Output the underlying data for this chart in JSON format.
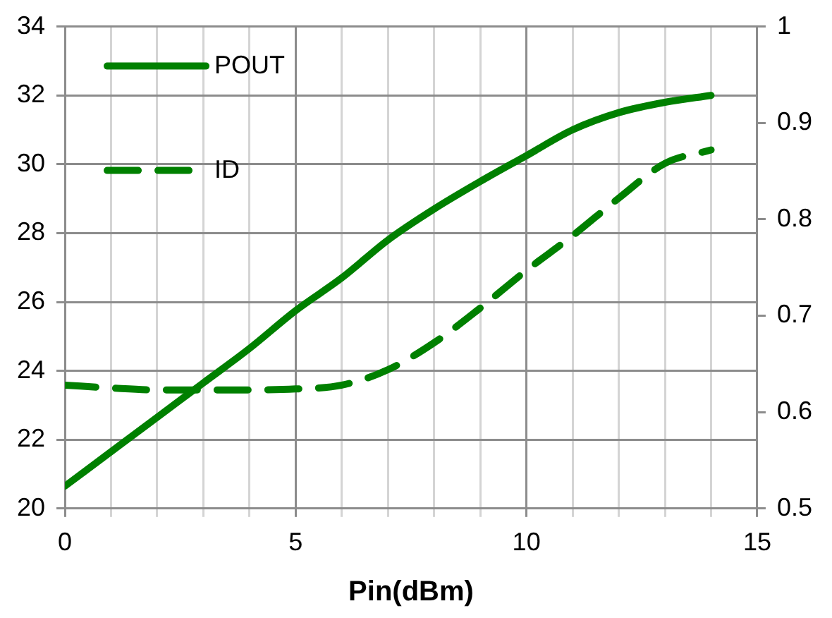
{
  "chart_data": {
    "type": "line",
    "xlabel": "Pin(dBm)",
    "x": [
      0,
      1,
      2,
      3,
      4,
      5,
      6,
      7,
      8,
      9,
      10,
      11,
      12,
      13,
      14
    ],
    "series": [
      {
        "name": "POUT",
        "color": "#008000",
        "line_style": "solid",
        "values": [
          20.65,
          21.65,
          22.65,
          23.65,
          24.65,
          25.75,
          26.7,
          27.8,
          28.7,
          29.5,
          30.25,
          31.0,
          31.5,
          31.8,
          32.0
        ]
      },
      {
        "name": "ID",
        "color": "#008000",
        "line_style": "dashed",
        "axis": "y2",
        "values": [
          0.628,
          0.625,
          0.623,
          0.623,
          0.623,
          0.624,
          0.628,
          0.644,
          0.672,
          0.708,
          0.747,
          0.783,
          0.822,
          0.858,
          0.872
        ]
      }
    ],
    "xlim": [
      0,
      15
    ],
    "xticks": [
      0,
      {
        "value": 1,
        "label": null
      },
      {
        "value": 2,
        "label": null
      },
      {
        "value": 3,
        "label": null
      },
      {
        "value": 4,
        "label": null
      },
      5,
      {
        "value": 6,
        "label": null
      },
      {
        "value": 7,
        "label": null
      },
      {
        "value": 8,
        "label": null
      },
      {
        "value": 9,
        "label": null
      },
      10,
      {
        "value": 11,
        "label": null
      },
      {
        "value": 12,
        "label": null
      },
      {
        "value": 13,
        "label": null
      },
      {
        "value": 14,
        "label": null
      },
      15
    ],
    "ylim": [
      20,
      34
    ],
    "yticks": [
      20,
      22,
      24,
      26,
      28,
      30,
      32,
      34
    ],
    "y2lim": [
      0.5,
      1
    ],
    "y2ticks": [
      0.5,
      0.6,
      0.7,
      0.8,
      0.9,
      1
    ],
    "grid": true,
    "legend": "top left",
    "marker": "none"
  }
}
